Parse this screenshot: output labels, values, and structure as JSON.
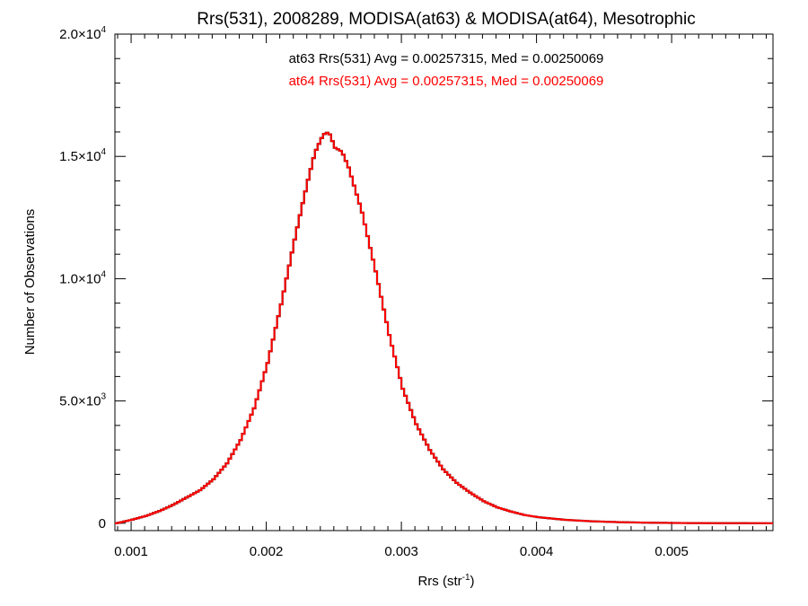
{
  "colors": {
    "at63": "#000000",
    "at64": "#ff0000"
  },
  "chart_data": {
    "type": "line",
    "title": "Rrs(531), 2008289, MODISA(at63) & MODISA(at64), Mesotrophic",
    "xlabel": {
      "base": "Rrs (str",
      "sup": "-1",
      "tail": ")"
    },
    "ylabel": "Number of Observations",
    "xlim": [
      0.00088,
      0.00575
    ],
    "ylim": [
      -300,
      20000
    ],
    "x_ticks": [
      {
        "value": 0.001,
        "label": "0.001"
      },
      {
        "value": 0.002,
        "label": "0.002"
      },
      {
        "value": 0.003,
        "label": "0.003"
      },
      {
        "value": 0.004,
        "label": "0.004"
      },
      {
        "value": 0.005,
        "label": "0.005"
      }
    ],
    "y_ticks": [
      {
        "value": 0,
        "mant": "0",
        "exp": ""
      },
      {
        "value": 5000,
        "mant": "5.0×10",
        "exp": "3"
      },
      {
        "value": 10000,
        "mant": "1.0×10",
        "exp": "4"
      },
      {
        "value": 15000,
        "mant": "1.5×10",
        "exp": "4"
      },
      {
        "value": 20000,
        "mant": "2.0×10",
        "exp": "4"
      }
    ],
    "annotations": [
      {
        "text": "at63 Rrs(531) Avg = 0.00257315, Med = 0.00250069",
        "series": "at63"
      },
      {
        "text": "at64 Rrs(531) Avg = 0.00257315, Med = 0.00250069",
        "series": "at64"
      }
    ],
    "series": [
      {
        "key": "at63",
        "x": [
          0.00088,
          0.0009,
          0.001,
          0.0011,
          0.0012,
          0.0013,
          0.0014,
          0.0015,
          0.0016,
          0.0017,
          0.0018,
          0.0019,
          0.002,
          0.0021,
          0.0022,
          0.00225,
          0.0023,
          0.00235,
          0.0024,
          0.00243,
          0.00246,
          0.0025,
          0.00255,
          0.0026,
          0.0027,
          0.0028,
          0.0029,
          0.003,
          0.0031,
          0.0032,
          0.0033,
          0.0034,
          0.0035,
          0.0036,
          0.0037,
          0.0038,
          0.0039,
          0.004,
          0.0042,
          0.0044,
          0.0046,
          0.0048,
          0.005,
          0.0052,
          0.0054,
          0.0056,
          0.00575
        ],
        "values": [
          0,
          20,
          150,
          300,
          500,
          750,
          1050,
          1350,
          1800,
          2450,
          3400,
          4700,
          6550,
          8950,
          11600,
          12850,
          14050,
          15150,
          15750,
          16000,
          15900,
          15350,
          15200,
          14550,
          12700,
          10300,
          7700,
          5500,
          4050,
          3000,
          2200,
          1650,
          1250,
          900,
          650,
          480,
          340,
          250,
          140,
          80,
          45,
          25,
          12,
          6,
          3,
          1,
          0
        ]
      },
      {
        "key": "at64",
        "x": [
          0.00088,
          0.0009,
          0.001,
          0.0011,
          0.0012,
          0.0013,
          0.0014,
          0.0015,
          0.0016,
          0.0017,
          0.0018,
          0.0019,
          0.002,
          0.0021,
          0.0022,
          0.00225,
          0.0023,
          0.00235,
          0.0024,
          0.00243,
          0.00246,
          0.0025,
          0.00255,
          0.0026,
          0.0027,
          0.0028,
          0.0029,
          0.003,
          0.0031,
          0.0032,
          0.0033,
          0.0034,
          0.0035,
          0.0036,
          0.0037,
          0.0038,
          0.0039,
          0.004,
          0.0042,
          0.0044,
          0.0046,
          0.0048,
          0.005,
          0.0052,
          0.0054,
          0.0056,
          0.00575
        ],
        "values": [
          0,
          20,
          150,
          300,
          500,
          750,
          1050,
          1350,
          1800,
          2450,
          3400,
          4700,
          6550,
          8950,
          11600,
          12850,
          14050,
          15150,
          15750,
          16000,
          15900,
          15350,
          15200,
          14550,
          12700,
          10300,
          7700,
          5500,
          4050,
          3000,
          2200,
          1650,
          1250,
          900,
          650,
          480,
          340,
          250,
          140,
          80,
          45,
          25,
          12,
          6,
          3,
          1,
          0
        ]
      }
    ]
  }
}
